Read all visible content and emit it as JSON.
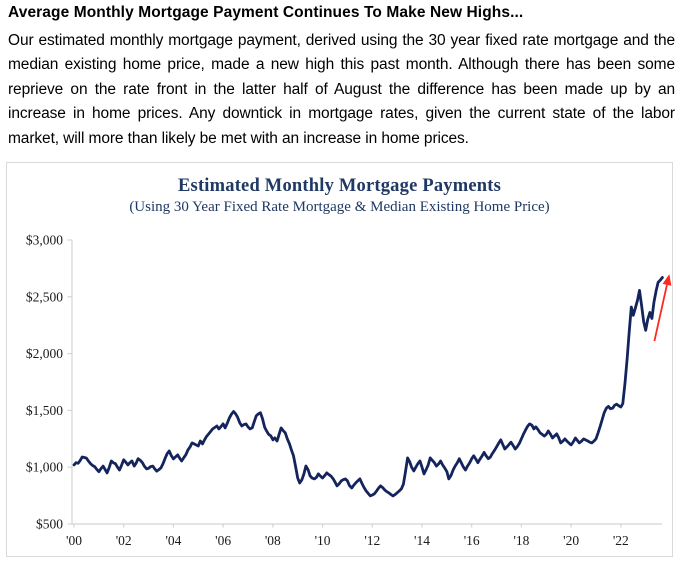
{
  "header": {
    "title": "Average Monthly Mortgage Payment Continues To Make New Highs...",
    "paragraph": "Our estimated monthly mortgage payment, derived using the 30 year fixed rate mortgage and the median existing home price, made a new high this past month. Although there has been some reprieve on the rate front in the latter half of August the difference has been made up by an increase in home prices. Any downtick in mortgage rates, given the current state of the labor market, will more than likely be met with an increase in home prices."
  },
  "colors": {
    "title_navy": "#1f3864",
    "line_navy": "#14245c",
    "arrow_red": "#fb2a20",
    "axis_gray": "#d4d4d4",
    "frame_gray": "#d9d9d9",
    "tick_text": "#1a1a1a"
  },
  "chart_data": {
    "type": "line",
    "title": "Estimated Monthly Mortgage Payments",
    "subtitle": "(Using 30 Year Fixed Rate Mortgage & Median Existing Home Price)",
    "xlabel": "",
    "ylabel": "",
    "grid": false,
    "legend": "none",
    "xlim": [
      2000,
      2023.9
    ],
    "ylim": [
      500,
      3000
    ],
    "x_tick_years": [
      2000,
      2002,
      2004,
      2006,
      2008,
      2010,
      2012,
      2014,
      2016,
      2018,
      2020,
      2022
    ],
    "x_ticks": [
      "'00",
      "'02",
      "'04",
      "'06",
      "'08",
      "'10",
      "'12",
      "'14",
      "'16",
      "'18",
      "'20",
      "'22"
    ],
    "y_tick_values": [
      500,
      1000,
      1500,
      2000,
      2500,
      3000
    ],
    "y_ticks": [
      "$500",
      "$1,000",
      "$1,500",
      "$2,000",
      "$2,500",
      "$3,000"
    ],
    "annotation_arrow": {
      "meaning": "payments surging to new highs",
      "from": [
        2023.35,
        2110
      ],
      "to": [
        2023.95,
        2700
      ]
    },
    "series": [
      {
        "name": "Estimated monthly mortgage payment ($/mo)",
        "points": [
          [
            2000.0,
            1020
          ],
          [
            2000.08,
            1040
          ],
          [
            2000.17,
            1035
          ],
          [
            2000.25,
            1060
          ],
          [
            2000.33,
            1090
          ],
          [
            2000.42,
            1085
          ],
          [
            2000.5,
            1080
          ],
          [
            2000.58,
            1055
          ],
          [
            2000.67,
            1030
          ],
          [
            2000.75,
            1015
          ],
          [
            2000.83,
            1005
          ],
          [
            2000.92,
            980
          ],
          [
            2001.0,
            960
          ],
          [
            2001.08,
            985
          ],
          [
            2001.17,
            1010
          ],
          [
            2001.25,
            980
          ],
          [
            2001.33,
            950
          ],
          [
            2001.42,
            1000
          ],
          [
            2001.5,
            1055
          ],
          [
            2001.58,
            1040
          ],
          [
            2001.67,
            1030
          ],
          [
            2001.75,
            1000
          ],
          [
            2001.83,
            975
          ],
          [
            2001.92,
            1020
          ],
          [
            2002.0,
            1065
          ],
          [
            2002.08,
            1045
          ],
          [
            2002.17,
            1020
          ],
          [
            2002.25,
            1040
          ],
          [
            2002.33,
            1055
          ],
          [
            2002.42,
            1010
          ],
          [
            2002.5,
            1035
          ],
          [
            2002.58,
            1075
          ],
          [
            2002.67,
            1060
          ],
          [
            2002.75,
            1040
          ],
          [
            2002.83,
            1010
          ],
          [
            2002.92,
            985
          ],
          [
            2003.0,
            990
          ],
          [
            2003.08,
            1005
          ],
          [
            2003.17,
            1010
          ],
          [
            2003.25,
            985
          ],
          [
            2003.33,
            965
          ],
          [
            2003.42,
            980
          ],
          [
            2003.5,
            995
          ],
          [
            2003.58,
            1030
          ],
          [
            2003.67,
            1080
          ],
          [
            2003.75,
            1120
          ],
          [
            2003.83,
            1143
          ],
          [
            2003.92,
            1100
          ],
          [
            2004.0,
            1073
          ],
          [
            2004.08,
            1090
          ],
          [
            2004.17,
            1108
          ],
          [
            2004.25,
            1080
          ],
          [
            2004.33,
            1055
          ],
          [
            2004.42,
            1085
          ],
          [
            2004.5,
            1110
          ],
          [
            2004.58,
            1150
          ],
          [
            2004.67,
            1180
          ],
          [
            2004.75,
            1214
          ],
          [
            2004.83,
            1205
          ],
          [
            2004.92,
            1195
          ],
          [
            2005.0,
            1187
          ],
          [
            2005.08,
            1231
          ],
          [
            2005.17,
            1205
          ],
          [
            2005.25,
            1240
          ],
          [
            2005.33,
            1270
          ],
          [
            2005.42,
            1293
          ],
          [
            2005.5,
            1315
          ],
          [
            2005.58,
            1337
          ],
          [
            2005.67,
            1350
          ],
          [
            2005.75,
            1363
          ],
          [
            2005.83,
            1337
          ],
          [
            2005.92,
            1360
          ],
          [
            2006.0,
            1381
          ],
          [
            2006.08,
            1346
          ],
          [
            2006.17,
            1390
          ],
          [
            2006.25,
            1434
          ],
          [
            2006.33,
            1465
          ],
          [
            2006.42,
            1490
          ],
          [
            2006.5,
            1470
          ],
          [
            2006.58,
            1440
          ],
          [
            2006.67,
            1390
          ],
          [
            2006.75,
            1363
          ],
          [
            2006.83,
            1375
          ],
          [
            2006.92,
            1381
          ],
          [
            2007.0,
            1355
          ],
          [
            2007.08,
            1337
          ],
          [
            2007.17,
            1346
          ],
          [
            2007.25,
            1400
          ],
          [
            2007.33,
            1452
          ],
          [
            2007.42,
            1470
          ],
          [
            2007.5,
            1480
          ],
          [
            2007.58,
            1430
          ],
          [
            2007.67,
            1350
          ],
          [
            2007.75,
            1319
          ],
          [
            2007.83,
            1290
          ],
          [
            2007.92,
            1275
          ],
          [
            2008.0,
            1240
          ],
          [
            2008.08,
            1258
          ],
          [
            2008.17,
            1231
          ],
          [
            2008.25,
            1290
          ],
          [
            2008.33,
            1346
          ],
          [
            2008.42,
            1320
          ],
          [
            2008.5,
            1302
          ],
          [
            2008.58,
            1250
          ],
          [
            2008.67,
            1205
          ],
          [
            2008.75,
            1150
          ],
          [
            2008.83,
            1100
          ],
          [
            2008.92,
            1000
          ],
          [
            2009.0,
            905
          ],
          [
            2009.08,
            861
          ],
          [
            2009.17,
            890
          ],
          [
            2009.25,
            940
          ],
          [
            2009.33,
            1011
          ],
          [
            2009.42,
            975
          ],
          [
            2009.5,
            923
          ],
          [
            2009.58,
            905
          ],
          [
            2009.67,
            897
          ],
          [
            2009.75,
            910
          ],
          [
            2009.83,
            941
          ],
          [
            2009.92,
            920
          ],
          [
            2010.0,
            905
          ],
          [
            2010.08,
            925
          ],
          [
            2010.17,
            950
          ],
          [
            2010.25,
            935
          ],
          [
            2010.33,
            923
          ],
          [
            2010.42,
            900
          ],
          [
            2010.5,
            870
          ],
          [
            2010.58,
            835
          ],
          [
            2010.67,
            855
          ],
          [
            2010.75,
            879
          ],
          [
            2010.83,
            890
          ],
          [
            2010.92,
            897
          ],
          [
            2011.0,
            880
          ],
          [
            2011.08,
            840
          ],
          [
            2011.17,
            817
          ],
          [
            2011.25,
            840
          ],
          [
            2011.33,
            861
          ],
          [
            2011.42,
            880
          ],
          [
            2011.5,
            897
          ],
          [
            2011.58,
            860
          ],
          [
            2011.67,
            820
          ],
          [
            2011.75,
            791
          ],
          [
            2011.83,
            770
          ],
          [
            2011.92,
            747
          ],
          [
            2012.0,
            755
          ],
          [
            2012.08,
            765
          ],
          [
            2012.17,
            790
          ],
          [
            2012.25,
            815
          ],
          [
            2012.33,
            835
          ],
          [
            2012.42,
            820
          ],
          [
            2012.5,
            800
          ],
          [
            2012.58,
            785
          ],
          [
            2012.67,
            774
          ],
          [
            2012.75,
            760
          ],
          [
            2012.83,
            747
          ],
          [
            2012.92,
            760
          ],
          [
            2013.0,
            775
          ],
          [
            2013.08,
            790
          ],
          [
            2013.17,
            810
          ],
          [
            2013.25,
            850
          ],
          [
            2013.33,
            950
          ],
          [
            2013.42,
            1082
          ],
          [
            2013.5,
            1050
          ],
          [
            2013.58,
            1000
          ],
          [
            2013.67,
            967
          ],
          [
            2013.75,
            1000
          ],
          [
            2013.83,
            1030
          ],
          [
            2013.92,
            1055
          ],
          [
            2014.0,
            1000
          ],
          [
            2014.08,
            941
          ],
          [
            2014.17,
            980
          ],
          [
            2014.25,
            1020
          ],
          [
            2014.33,
            1082
          ],
          [
            2014.42,
            1060
          ],
          [
            2014.5,
            1040
          ],
          [
            2014.58,
            1010
          ],
          [
            2014.67,
            1030
          ],
          [
            2014.75,
            1055
          ],
          [
            2014.83,
            1020
          ],
          [
            2014.92,
            990
          ],
          [
            2015.0,
            960
          ],
          [
            2015.08,
            897
          ],
          [
            2015.17,
            930
          ],
          [
            2015.25,
            975
          ],
          [
            2015.33,
            1010
          ],
          [
            2015.42,
            1040
          ],
          [
            2015.5,
            1075
          ],
          [
            2015.58,
            1040
          ],
          [
            2015.67,
            1000
          ],
          [
            2015.75,
            975
          ],
          [
            2015.83,
            1010
          ],
          [
            2015.92,
            1040
          ],
          [
            2016.0,
            1075
          ],
          [
            2016.08,
            1100
          ],
          [
            2016.17,
            1070
          ],
          [
            2016.25,
            1040
          ],
          [
            2016.33,
            1070
          ],
          [
            2016.42,
            1100
          ],
          [
            2016.5,
            1130
          ],
          [
            2016.58,
            1100
          ],
          [
            2016.67,
            1075
          ],
          [
            2016.75,
            1090
          ],
          [
            2016.83,
            1120
          ],
          [
            2016.92,
            1150
          ],
          [
            2017.0,
            1180
          ],
          [
            2017.08,
            1210
          ],
          [
            2017.17,
            1240
          ],
          [
            2017.25,
            1200
          ],
          [
            2017.33,
            1160
          ],
          [
            2017.42,
            1180
          ],
          [
            2017.5,
            1200
          ],
          [
            2017.58,
            1220
          ],
          [
            2017.67,
            1190
          ],
          [
            2017.75,
            1160
          ],
          [
            2017.83,
            1180
          ],
          [
            2017.92,
            1210
          ],
          [
            2018.0,
            1250
          ],
          [
            2018.08,
            1290
          ],
          [
            2018.17,
            1330
          ],
          [
            2018.25,
            1360
          ],
          [
            2018.33,
            1381
          ],
          [
            2018.42,
            1370
          ],
          [
            2018.5,
            1337
          ],
          [
            2018.58,
            1355
          ],
          [
            2018.67,
            1330
          ],
          [
            2018.75,
            1302
          ],
          [
            2018.83,
            1290
          ],
          [
            2018.92,
            1275
          ],
          [
            2019.0,
            1290
          ],
          [
            2019.08,
            1319
          ],
          [
            2019.17,
            1290
          ],
          [
            2019.25,
            1257
          ],
          [
            2019.33,
            1275
          ],
          [
            2019.42,
            1293
          ],
          [
            2019.5,
            1260
          ],
          [
            2019.58,
            1214
          ],
          [
            2019.67,
            1230
          ],
          [
            2019.75,
            1249
          ],
          [
            2019.83,
            1230
          ],
          [
            2019.92,
            1210
          ],
          [
            2020.0,
            1196
          ],
          [
            2020.08,
            1220
          ],
          [
            2020.17,
            1257
          ],
          [
            2020.25,
            1235
          ],
          [
            2020.33,
            1214
          ],
          [
            2020.42,
            1230
          ],
          [
            2020.5,
            1249
          ],
          [
            2020.58,
            1240
          ],
          [
            2020.67,
            1231
          ],
          [
            2020.75,
            1220
          ],
          [
            2020.83,
            1214
          ],
          [
            2020.92,
            1230
          ],
          [
            2021.0,
            1250
          ],
          [
            2021.08,
            1300
          ],
          [
            2021.17,
            1360
          ],
          [
            2021.25,
            1420
          ],
          [
            2021.33,
            1480
          ],
          [
            2021.42,
            1520
          ],
          [
            2021.5,
            1535
          ],
          [
            2021.58,
            1515
          ],
          [
            2021.67,
            1520
          ],
          [
            2021.75,
            1545
          ],
          [
            2021.83,
            1555
          ],
          [
            2021.92,
            1540
          ],
          [
            2022.0,
            1530
          ],
          [
            2022.08,
            1560
          ],
          [
            2022.17,
            1750
          ],
          [
            2022.25,
            1950
          ],
          [
            2022.33,
            2180
          ],
          [
            2022.42,
            2410
          ],
          [
            2022.5,
            2337
          ],
          [
            2022.58,
            2400
          ],
          [
            2022.67,
            2470
          ],
          [
            2022.75,
            2556
          ],
          [
            2022.83,
            2430
          ],
          [
            2022.92,
            2280
          ],
          [
            2023.0,
            2205
          ],
          [
            2023.08,
            2300
          ],
          [
            2023.17,
            2363
          ],
          [
            2023.25,
            2310
          ],
          [
            2023.33,
            2450
          ],
          [
            2023.42,
            2556
          ],
          [
            2023.5,
            2627
          ],
          [
            2023.58,
            2645
          ],
          [
            2023.67,
            2670
          ]
        ]
      }
    ]
  }
}
